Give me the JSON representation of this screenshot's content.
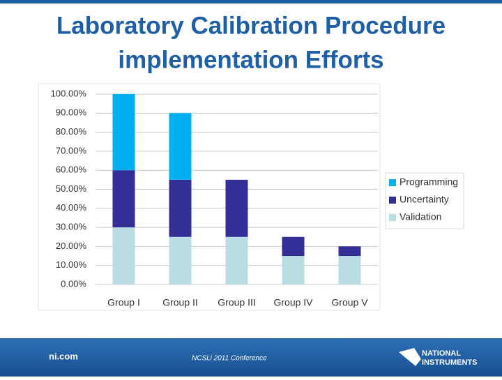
{
  "chart_data": {
    "type": "stacked_bar",
    "title": [
      "Laboratory Calibration Procedure",
      "implementation Efforts"
    ],
    "categories": [
      "Group I",
      "Group II",
      "Group III",
      "Group IV",
      "Group V"
    ],
    "series": [
      {
        "name": "Programming",
        "color": "#00b0f0",
        "values": [
          40,
          35,
          0,
          0,
          0
        ]
      },
      {
        "name": "Uncertainty",
        "color": "#342f97",
        "values": [
          30,
          30,
          30,
          10,
          5
        ]
      },
      {
        "name": "Validation",
        "color": "#b8dde3",
        "values": [
          30,
          25,
          25,
          15,
          15
        ]
      }
    ],
    "ylim": [
      0,
      100
    ],
    "yticks": [
      {
        "value": 0,
        "label": "0.00%"
      },
      {
        "value": 10,
        "label": "10.00%"
      },
      {
        "value": 20,
        "label": "20.00%"
      },
      {
        "value": 30,
        "label": "30.00%"
      },
      {
        "value": 40,
        "label": "40.00%"
      },
      {
        "value": 50,
        "label": "50.00%"
      },
      {
        "value": 60,
        "label": "60.00%"
      },
      {
        "value": 70,
        "label": "70.00%"
      },
      {
        "value": 80,
        "label": "80.00%"
      },
      {
        "value": 90,
        "label": "90.00%"
      },
      {
        "value": 100,
        "label": "100.00%"
      }
    ],
    "grid": true,
    "legend": "right"
  },
  "footer": {
    "site": "ni.com",
    "conference": "NCSLi 2011 Conference",
    "logo": [
      "NATIONAL",
      "INSTRUMENTS"
    ]
  }
}
